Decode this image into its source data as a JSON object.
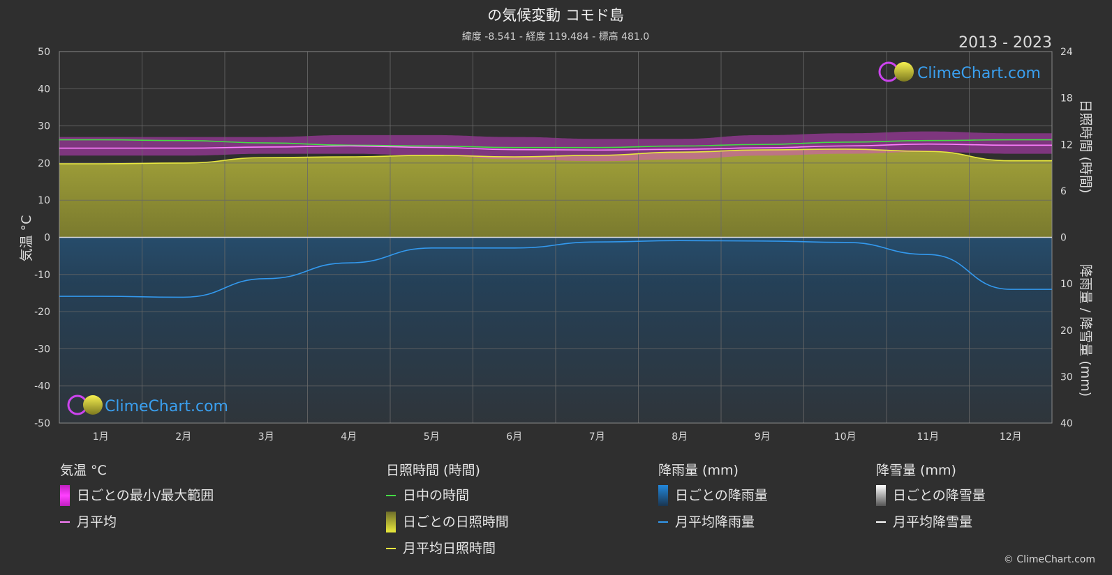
{
  "header": {
    "title": "の気候変動 コモド島",
    "subtitle": "緯度 -8.541 - 経度 119.484 - 標高 481.0",
    "period": "2013 - 2023"
  },
  "brand": {
    "logo_text": "ClimeChart.com",
    "copyright": "© ClimeChart.com"
  },
  "legend": {
    "temperature": {
      "title": "気温 °C",
      "items": [
        "日ごとの最小/最大範囲",
        "月平均"
      ]
    },
    "sunshine": {
      "title": "日照時間 (時間)",
      "items": [
        "日中の時間",
        "日ごとの日照時間",
        "月平均日照時間"
      ]
    },
    "rain": {
      "title": "降雨量 (mm)",
      "items": [
        "日ごとの降雨量",
        "月平均降雨量"
      ]
    },
    "snow": {
      "title": "降雪量 (mm)",
      "items": [
        "日ごとの降雪量",
        "月平均降雪量"
      ]
    }
  },
  "colors": {
    "background": "#2f2f2f",
    "temp_range": "#e040e0",
    "temp_avg": "#ff80ff",
    "daylight": "#44dd44",
    "sunshine_fill": "#9a9a32",
    "sunshine_avg": "#e8e840",
    "rain_fill": "#1e5f94",
    "rain_avg": "#3399ee",
    "snow_avg": "#ffffff"
  },
  "chart_data": {
    "type": "line",
    "categories": [
      "1月",
      "2月",
      "3月",
      "4月",
      "5月",
      "6月",
      "7月",
      "8月",
      "9月",
      "10月",
      "11月",
      "12月"
    ],
    "y_left": {
      "label": "気温 °C",
      "range": [
        -50,
        50
      ],
      "ticks": [
        "50",
        "40",
        "30",
        "20",
        "10",
        "0",
        "-10",
        "-20",
        "-30",
        "-40",
        "-50"
      ]
    },
    "y_right_top": {
      "label": "日照時間 (時間)",
      "range": [
        0,
        24
      ],
      "ticks": [
        "24",
        "18",
        "12",
        "6",
        "0"
      ]
    },
    "y_right_bottom": {
      "label": "降雨量 / 降雪量 (mm)",
      "range": [
        0,
        40
      ],
      "ticks": [
        "10",
        "20",
        "30",
        "40"
      ]
    },
    "grid": true,
    "series": [
      {
        "name": "日中の時間",
        "axis": "hours",
        "values": [
          12.6,
          12.5,
          12.2,
          11.9,
          11.8,
          11.6,
          11.6,
          11.8,
          12.0,
          12.3,
          12.5,
          12.6
        ]
      },
      {
        "name": "月平均日照時間",
        "axis": "hours",
        "values": [
          9.5,
          9.6,
          10.3,
          10.4,
          10.6,
          10.4,
          10.6,
          11.0,
          11.3,
          11.4,
          11.1,
          9.9
        ]
      },
      {
        "name": "月平均",
        "axis": "temp",
        "values": [
          24.0,
          24.0,
          24.3,
          24.6,
          24.2,
          23.6,
          23.5,
          23.7,
          24.1,
          24.6,
          25.1,
          24.8
        ]
      },
      {
        "name": "日ごとの最小/最大範囲",
        "axis": "temp",
        "values_min": [
          22.0,
          22.0,
          22.5,
          22.5,
          22.0,
          21.0,
          20.5,
          21.0,
          22.0,
          22.5,
          23.0,
          22.5
        ],
        "values_max": [
          27.0,
          27.0,
          27.0,
          27.5,
          27.5,
          27.0,
          26.5,
          26.5,
          27.5,
          28.0,
          28.5,
          28.0
        ]
      },
      {
        "name": "月平均降雨量",
        "axis": "mm",
        "values": [
          12.7,
          12.9,
          8.9,
          5.5,
          2.3,
          2.3,
          1.0,
          0.7,
          0.8,
          1.1,
          3.7,
          11.2
        ]
      },
      {
        "name": "月平均降雪量",
        "axis": "mm",
        "values": [
          0,
          0,
          0,
          0,
          0,
          0,
          0,
          0,
          0,
          0,
          0,
          0
        ]
      }
    ]
  }
}
